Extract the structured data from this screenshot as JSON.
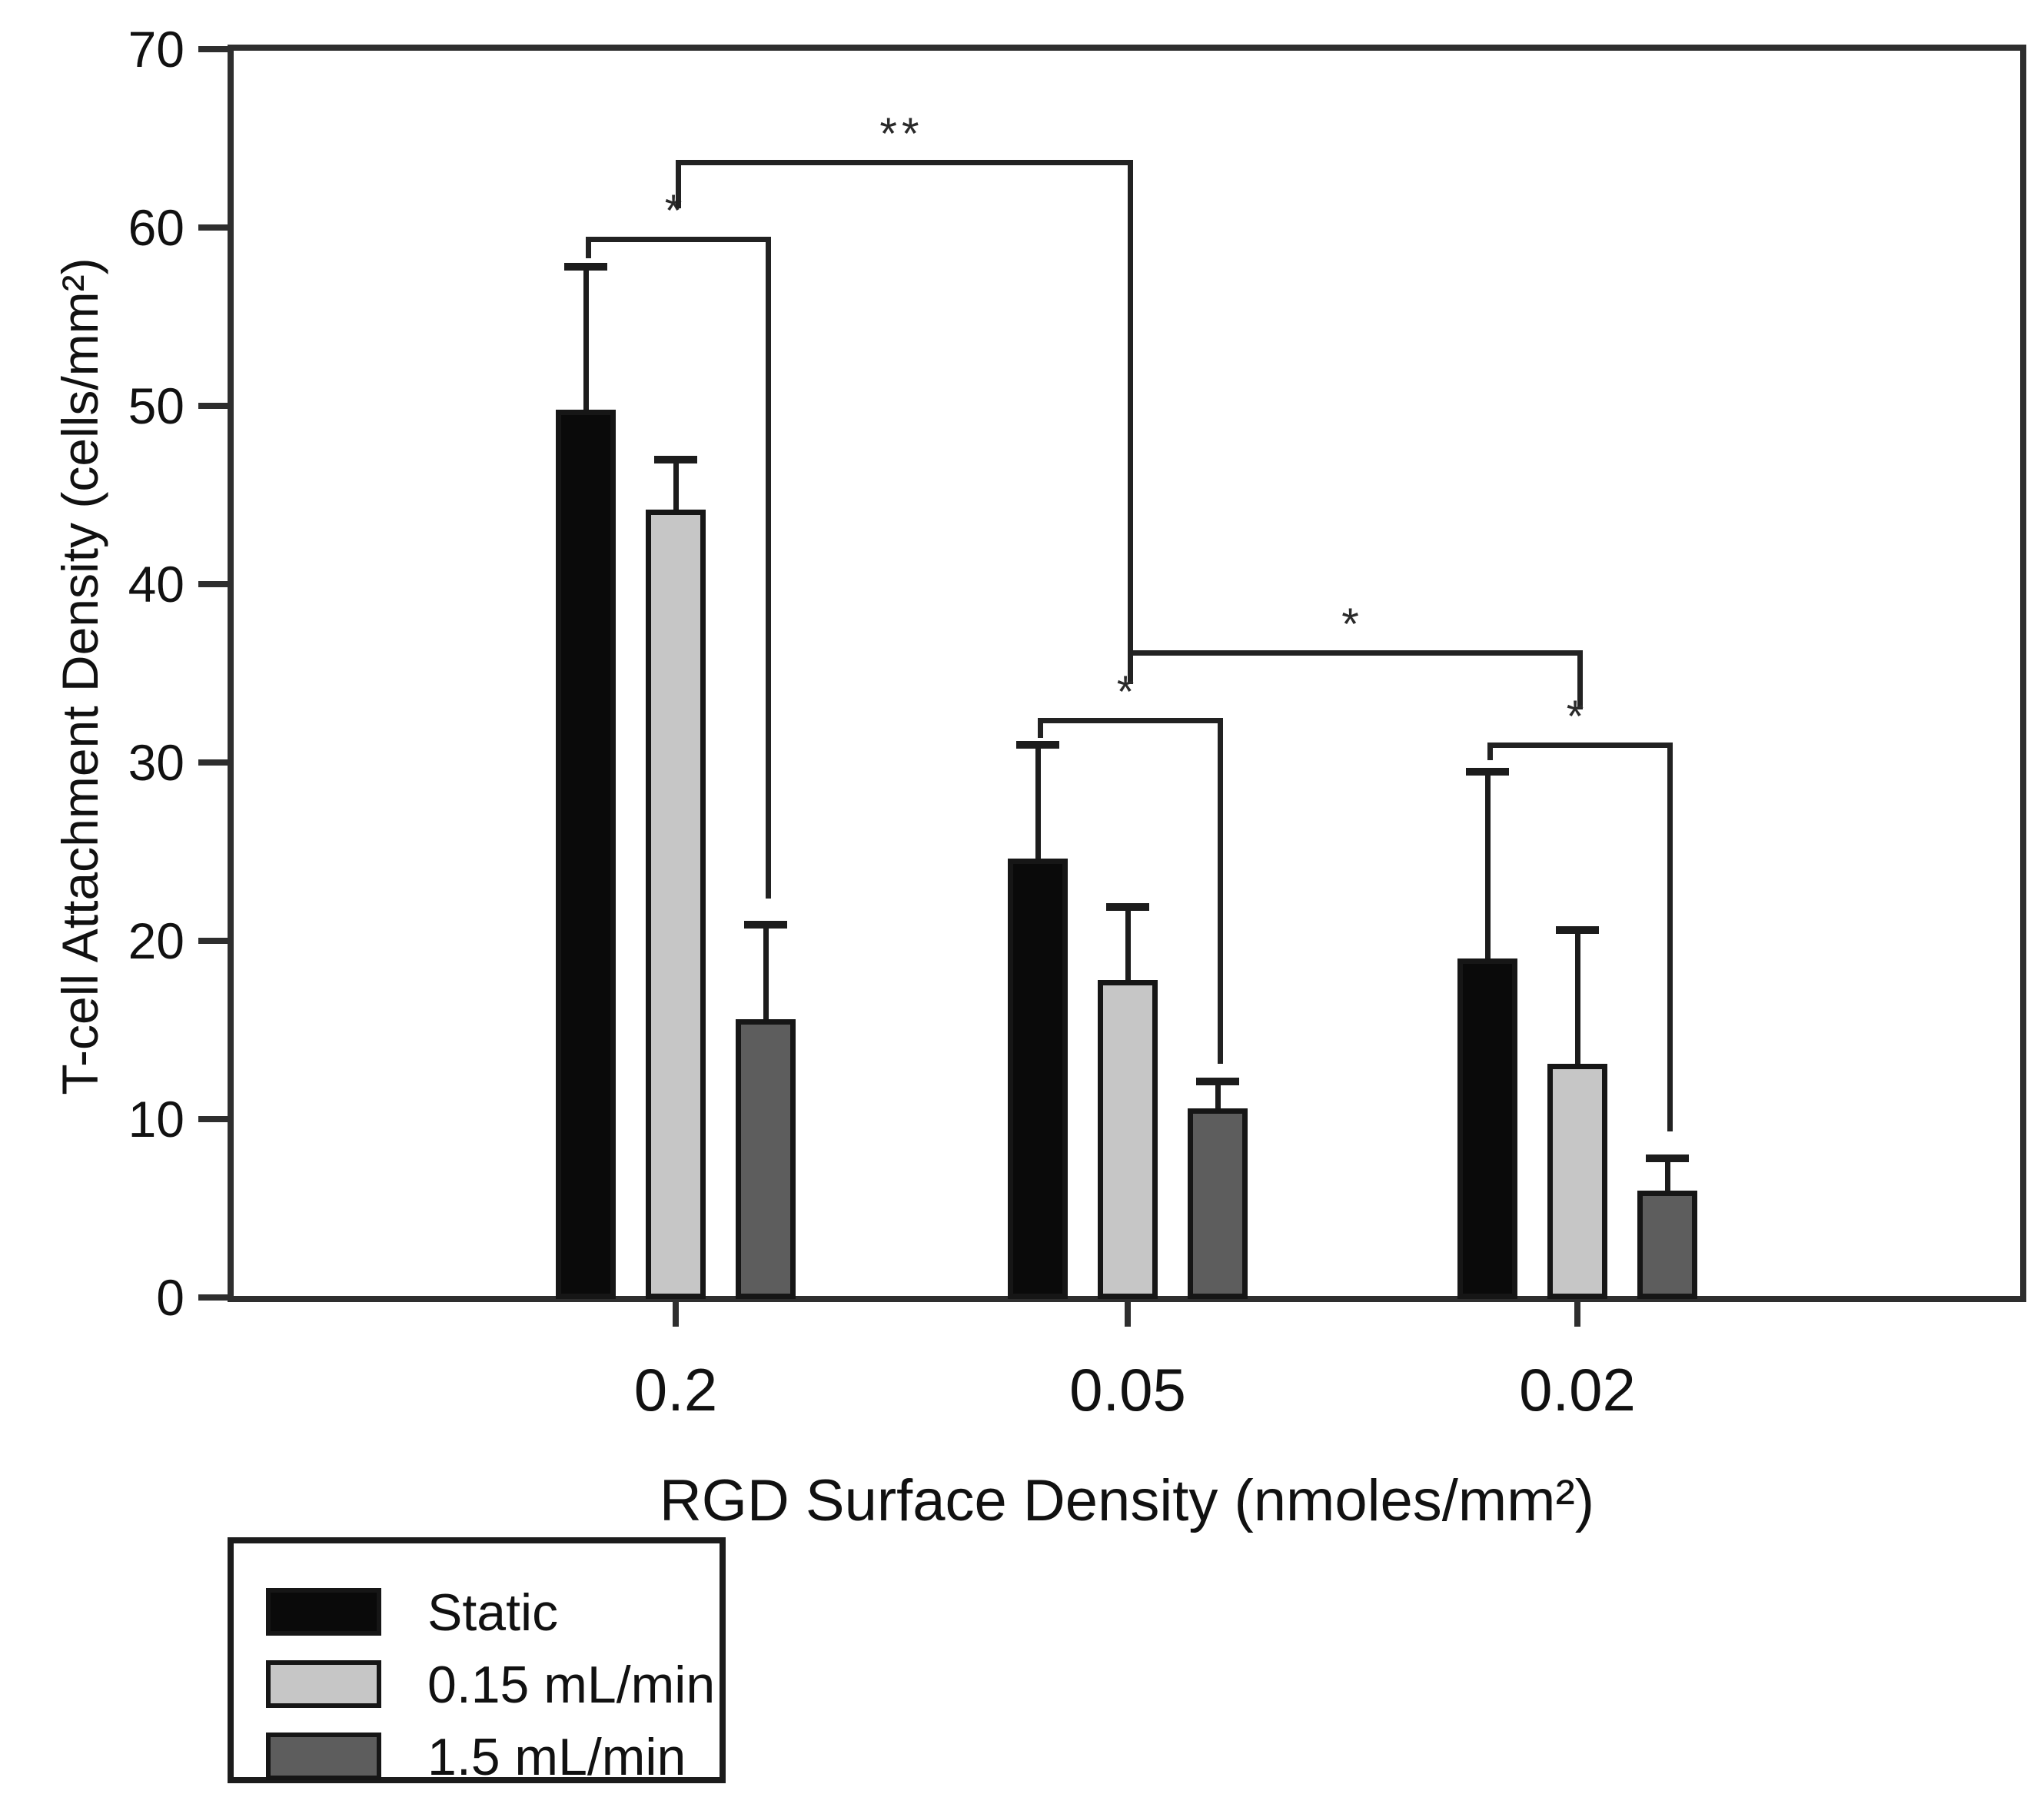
{
  "figure": {
    "background": "#ffffff",
    "axis_color": "#2e2e2e",
    "bar_border_color": "#161616",
    "error_bar_color": "#1c1c1c",
    "bracket_color": "#222222"
  },
  "chart_data": {
    "type": "bar",
    "title": "",
    "xlabel": "RGD Surface Density (nmoles/mm²)",
    "ylabel": "T-cell Attachment Density (cells/mm²)",
    "categories": [
      "0.2",
      "0.05",
      "0.02"
    ],
    "series": [
      {
        "name": "Static",
        "color": "#0a0a0a",
        "values": [
          49.8,
          24.6,
          19.0
        ],
        "error_plus": [
          8.0,
          6.4,
          10.5
        ]
      },
      {
        "name": "0.15 mL/min",
        "color": "#c6c6c6",
        "values": [
          44.2,
          17.8,
          13.1
        ],
        "error_plus": [
          2.8,
          4.1,
          7.5
        ]
      },
      {
        "name": "1.5 mL/min",
        "color": "#5d5d5d",
        "values": [
          15.6,
          10.6,
          6.0
        ],
        "error_plus": [
          5.3,
          1.5,
          1.8
        ]
      }
    ],
    "ylim": [
      0,
      70
    ],
    "yticks": [
      0,
      10,
      20,
      30,
      40,
      50,
      60,
      70
    ],
    "grid": false,
    "legend_position": "bottom-left",
    "significance": [
      {
        "label": "*",
        "y": 59.5,
        "from": {
          "group": 0,
          "series": 0
        },
        "to": {
          "group": 0,
          "series": 2
        },
        "drop_left": 1.2,
        "drop_right": 37.1
      },
      {
        "label": "**",
        "y": 63.8,
        "from": {
          "group": 0
        },
        "to": {
          "group": 1
        },
        "drop_left": 2.7,
        "drop_right": 29.3
      },
      {
        "label": "*",
        "y": 36.3,
        "from": {
          "group": 1
        },
        "to": {
          "group": 2
        },
        "drop_left": 1.9,
        "drop_right": 3.3
      },
      {
        "label": "*",
        "y": 32.5,
        "from": {
          "group": 1,
          "series": 0
        },
        "to": {
          "group": 1,
          "series": 2
        },
        "drop_left": 1.1,
        "drop_right": 19.4
      },
      {
        "label": "*",
        "y": 31.1,
        "from": {
          "group": 2,
          "series": 0
        },
        "to": {
          "group": 2,
          "series": 2
        },
        "drop_left": 1.0,
        "drop_right": 21.8
      }
    ]
  }
}
